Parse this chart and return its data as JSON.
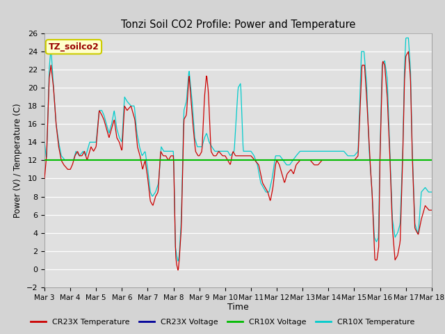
{
  "title": "Tonzi Soil CO2 Profile: Power and Temperature",
  "ylabel": "Power (V) / Temperature (C)",
  "xlabel": "Time",
  "ylim": [
    -2,
    26
  ],
  "yticks": [
    -2,
    0,
    2,
    4,
    6,
    8,
    10,
    12,
    14,
    16,
    18,
    20,
    22,
    24,
    26
  ],
  "x_tick_labels": [
    "Mar 3",
    "Mar 4",
    "Mar 5",
    "Mar 6",
    "Mar 7",
    "Mar 8",
    "Mar 9",
    "Mar 10",
    "Mar 11",
    "Mar 12",
    "Mar 13",
    "Mar 14",
    "Mar 15",
    "Mar 16",
    "Mar 17",
    "Mar 18"
  ],
  "cr23x_voltage_color": "#000099",
  "cr10x_voltage_color": "#00bb00",
  "cr23x_temp_color": "#cc0000",
  "cr10x_temp_color": "#00cccc",
  "voltage_value": 12.0,
  "background_color": "#d4d4d4",
  "plot_bg_color": "#e0e0e0",
  "annotation_text": "TZ_soilco2",
  "annotation_bg": "#ffffcc",
  "annotation_fg": "#990000",
  "annotation_border": "#cccc00",
  "legend_labels": [
    "CR23X Temperature",
    "CR23X Voltage",
    "CR10X Voltage",
    "CR10X Temperature"
  ],
  "legend_colors": [
    "#cc0000",
    "#000099",
    "#00bb00",
    "#00cccc"
  ]
}
